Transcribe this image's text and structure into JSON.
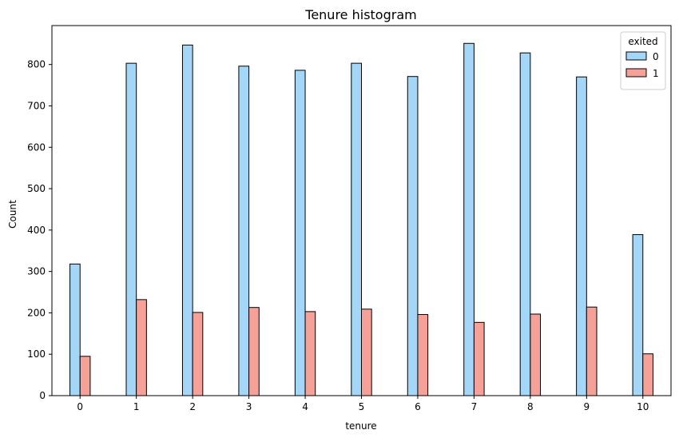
{
  "chart_data": {
    "type": "bar",
    "title": "Tenure histogram",
    "xlabel": "tenure",
    "ylabel": "Count",
    "categories": [
      "0",
      "1",
      "2",
      "3",
      "4",
      "5",
      "6",
      "7",
      "8",
      "9",
      "10"
    ],
    "series": [
      {
        "name": "0",
        "color": "#a4d6f7",
        "values": [
          318,
          803,
          847,
          796,
          786,
          803,
          771,
          851,
          828,
          770,
          389
        ]
      },
      {
        "name": "1",
        "color": "#f6a197",
        "values": [
          95,
          232,
          201,
          213,
          203,
          209,
          196,
          177,
          197,
          214,
          101
        ]
      }
    ],
    "yticks": [
      0,
      100,
      200,
      300,
      400,
      500,
      600,
      700,
      800
    ],
    "ylim": [
      0,
      894
    ],
    "xlim": [
      -0.5,
      10.5
    ],
    "legend": {
      "title": "exited",
      "placement": "top-right"
    },
    "grid": false
  }
}
